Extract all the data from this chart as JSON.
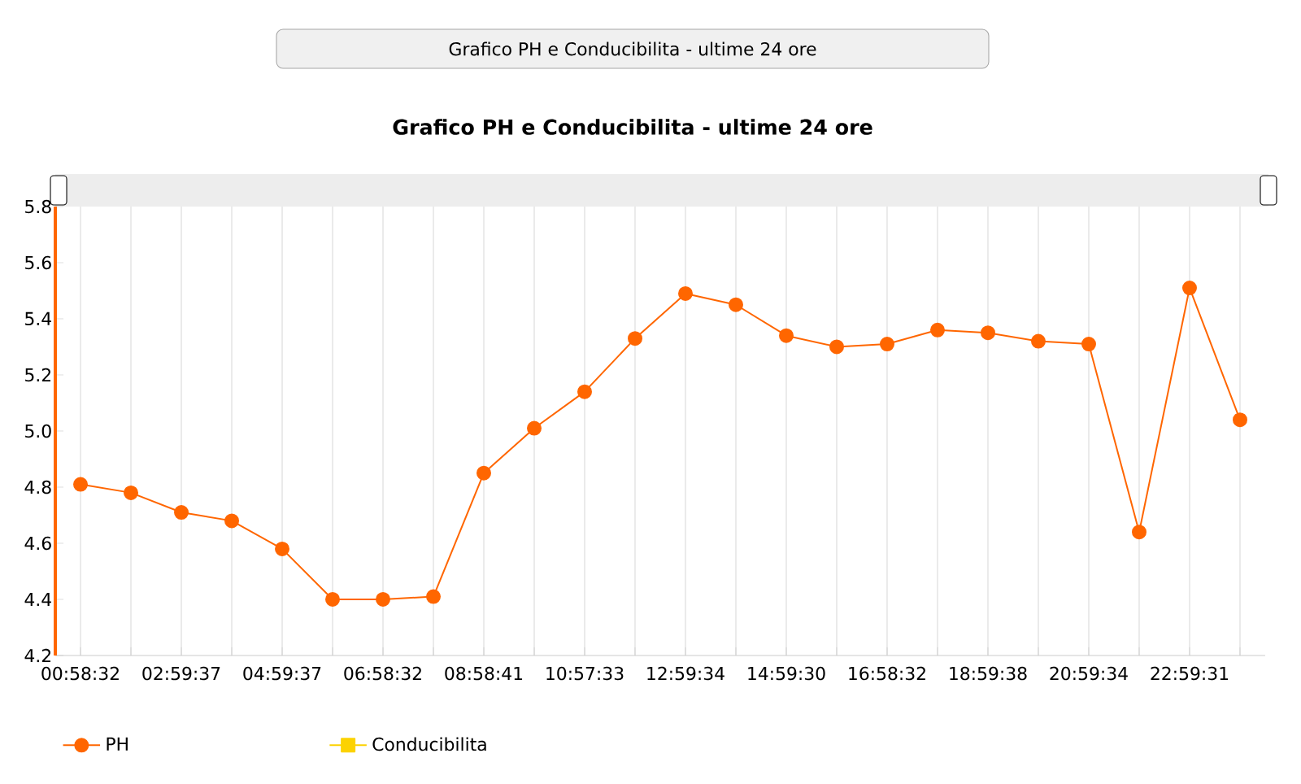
{
  "chart_data": {
    "type": "line",
    "title": "Grafico PH e Conducibilita - ultime 24 ore",
    "annotations": [
      "Grafico PH e Conducibilita - ultime 24 ore"
    ],
    "categories": [
      "00:58:32",
      null,
      "02:59:37",
      null,
      "04:59:37",
      null,
      "06:58:32",
      null,
      "08:58:41",
      null,
      "10:57:33",
      null,
      "12:59:34",
      null,
      "14:59:30",
      null,
      "16:58:32",
      null,
      "18:59:38",
      null,
      "20:59:34",
      null,
      "22:59:31",
      null
    ],
    "series": [
      {
        "name": "PH",
        "color": "#ff6600",
        "marker": "circle",
        "values": [
          4.81,
          4.78,
          4.71,
          4.68,
          4.58,
          4.4,
          4.4,
          4.41,
          4.85,
          5.01,
          5.14,
          5.33,
          5.49,
          5.45,
          5.34,
          5.3,
          5.31,
          5.36,
          5.35,
          5.32,
          5.31,
          4.64,
          5.51,
          5.04
        ]
      },
      {
        "name": "Conducibilita",
        "color": "#fcd202",
        "marker": "square",
        "values": [
          null,
          null,
          null,
          null,
          null,
          null,
          null,
          null,
          null,
          null,
          null,
          null,
          null,
          null,
          null,
          null,
          null,
          null,
          null,
          null,
          null,
          null,
          null,
          null
        ]
      }
    ],
    "ylim": [
      4.2,
      5.8
    ],
    "yticks": [
      4.2,
      4.4,
      4.6,
      4.8,
      {
        "value": 5.0,
        "label": "5.0"
      },
      5.2,
      5.4,
      5.6,
      5.8
    ],
    "grid": "x",
    "legend": "bottom",
    "line_style": "solid"
  }
}
